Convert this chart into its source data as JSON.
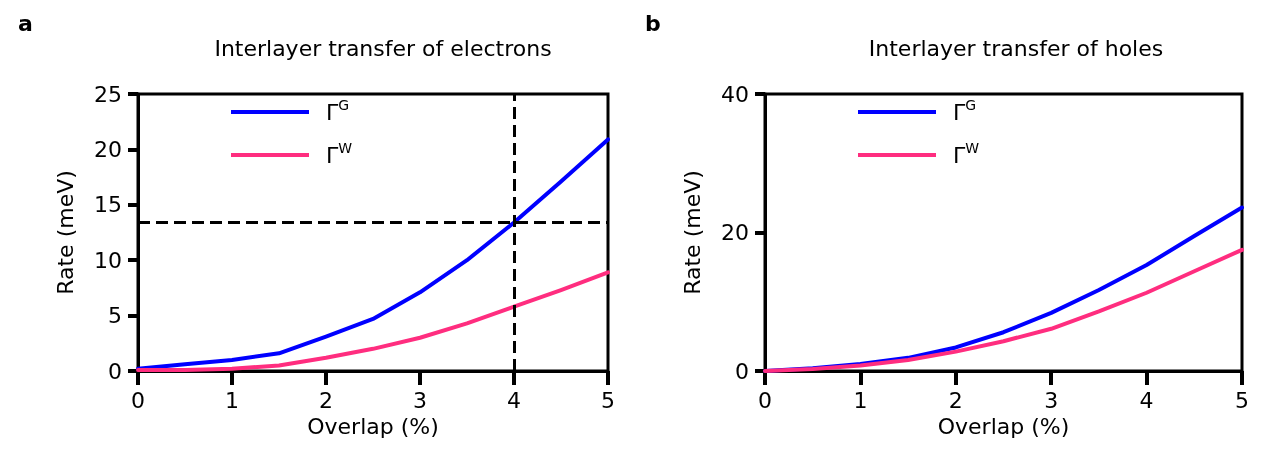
{
  "chart_data": [
    {
      "type": "line",
      "title": "Interlayer transfer of electrons",
      "xlabel": "Overlap (%)",
      "ylabel": "Rate (meV)",
      "annotations": [
        "a"
      ],
      "x": [
        0,
        0.5,
        1,
        1.5,
        2,
        2.5,
        3,
        3.5,
        4,
        4.5,
        5
      ],
      "series": [
        {
          "name": "Γ$^{G}$",
          "color": "#0000ff",
          "values": [
            0.2,
            0.6,
            1.0,
            1.6,
            3.1,
            4.7,
            7.1,
            10.0,
            13.4,
            17.1,
            20.9
          ]
        },
        {
          "name": "Γ$^{W}$",
          "color": "#ff2d7f",
          "values": [
            0.1,
            0.1,
            0.2,
            0.5,
            1.2,
            2.0,
            3.0,
            4.3,
            5.8,
            7.3,
            8.9
          ]
        }
      ],
      "xlim": [
        0,
        5
      ],
      "xticks": [
        0,
        1,
        2,
        3,
        4,
        5
      ],
      "ylim": [
        0,
        25
      ],
      "yticks": [
        0,
        5,
        10,
        15,
        20,
        25
      ],
      "grid": false,
      "legend": "top left",
      "marker": "none",
      "line_style": "solid",
      "ref_lines": [
        {
          "axis": "x",
          "value": 4,
          "color": "#000000",
          "line_style": "dashed"
        },
        {
          "axis": "y",
          "value": 13.4,
          "color": "#000000",
          "line_style": "dashed"
        }
      ]
    },
    {
      "type": "line",
      "title": "Interlayer transfer of holes",
      "xlabel": "Overlap (%)",
      "ylabel": "Rate (meV)",
      "annotations": [
        "b"
      ],
      "x": [
        0,
        0.5,
        1,
        1.5,
        2,
        2.5,
        3,
        3.5,
        4,
        4.5,
        5
      ],
      "series": [
        {
          "name": "Γ$^{G}$",
          "color": "#0000ff",
          "values": [
            0,
            0.4,
            1.0,
            1.9,
            3.4,
            5.6,
            8.4,
            11.7,
            15.3,
            19.5,
            23.6
          ]
        },
        {
          "name": "Γ$^{W}$",
          "color": "#ff2d7f",
          "values": [
            0,
            0.3,
            0.8,
            1.6,
            2.8,
            4.3,
            6.1,
            8.6,
            11.3,
            14.4,
            17.5
          ]
        }
      ],
      "xlim": [
        0,
        5
      ],
      "xticks": [
        0,
        1,
        2,
        3,
        4,
        5
      ],
      "ylim": [
        0,
        40
      ],
      "yticks": [
        0,
        20,
        40
      ],
      "grid": false,
      "legend": "top left",
      "marker": "none",
      "line_style": "solid"
    }
  ]
}
